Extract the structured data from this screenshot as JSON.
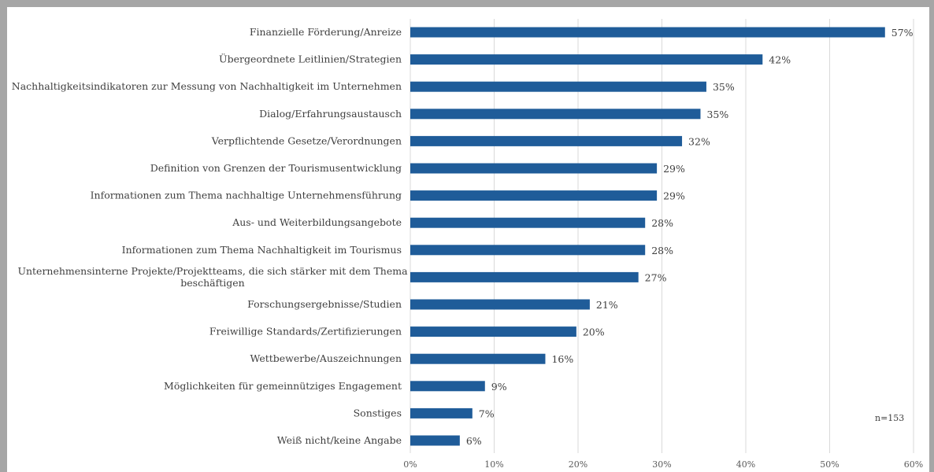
{
  "chart_data": {
    "type": "bar",
    "orientation": "horizontal",
    "categories": [
      "Finanzielle Förderung/Anreize",
      "Übergeordnete Leitlinien/Strategien",
      "Nachhaltigkeitsindikatoren zur Messung von Nachhaltigkeit im Unternehmen",
      "Dialog/Erfahrungsaustausch",
      "Verpflichtende Gesetze/Verordnungen",
      "Definition von Grenzen der Tourismusentwicklung",
      "Informationen zum Thema nachhaltige Unternehmensführung",
      "Aus- und Weiterbildungsangebote",
      "Informationen zum Thema Nachhaltigkeit im Tourismus",
      "Unternehmensinterne Projekte/Projektteams, die sich stärker mit dem Thema beschäftigen",
      "Forschungsergebnisse/Studien",
      "Freiwillige Standards/Zertifizierungen",
      "Wettbewerbe/Auszeichnungen",
      "Möglichkeiten für gemeinnütziges Engagement",
      "Sonstiges",
      "Weiß nicht/keine Angabe"
    ],
    "category_lines": [
      [
        "Finanzielle Förderung/Anreize"
      ],
      [
        "Übergeordnete Leitlinien/Strategien"
      ],
      [
        "Nachhaltigkeitsindikatoren zur Messung von Nachhaltigkeit im Unternehmen"
      ],
      [
        "Dialog/Erfahrungsaustausch"
      ],
      [
        "Verpflichtende Gesetze/Verordnungen"
      ],
      [
        "Definition von Grenzen der Tourismusentwicklung"
      ],
      [
        "Informationen zum Thema nachhaltige Unternehmensführung"
      ],
      [
        "Aus- und Weiterbildungsangebote"
      ],
      [
        "Informationen zum Thema Nachhaltigkeit im Tourismus"
      ],
      [
        "Unternehmensinterne Projekte/Projektteams, die sich stärker mit dem Thema",
        "beschäftigen"
      ],
      [
        "Forschungsergebnisse/Studien"
      ],
      [
        "Freiwillige Standards/Zertifizierungen"
      ],
      [
        "Wettbewerbe/Auszeichnungen"
      ],
      [
        "Möglichkeiten für gemeinnütziges Engagement"
      ],
      [
        "Sonstiges"
      ],
      [
        "Weiß nicht/keine Angabe"
      ]
    ],
    "values": [
      56.6,
      42,
      35.3,
      34.6,
      32.4,
      29.4,
      29.4,
      28,
      28,
      27.2,
      21.4,
      19.8,
      16.1,
      8.9,
      7.4,
      5.9
    ],
    "value_labels": [
      "57%",
      "42%",
      "35%",
      "35%",
      "32%",
      "29%",
      "29%",
      "28%",
      "28%",
      "27%",
      "21%",
      "20%",
      "16%",
      "9%",
      "7%",
      "6%"
    ],
    "xlim": [
      0,
      60
    ],
    "xticks": [
      0,
      10,
      20,
      30,
      40,
      50,
      60
    ],
    "xtick_labels": [
      "0%",
      "10%",
      "20%",
      "30%",
      "40%",
      "50%",
      "60%"
    ],
    "title": "",
    "xlabel": "",
    "ylabel": "",
    "grid": "vertical",
    "legend": "none",
    "note": "n=153",
    "bar_color": "#1f5c99",
    "grid_color": "#d9d9d9",
    "frame_color": "#a6a6a6"
  }
}
